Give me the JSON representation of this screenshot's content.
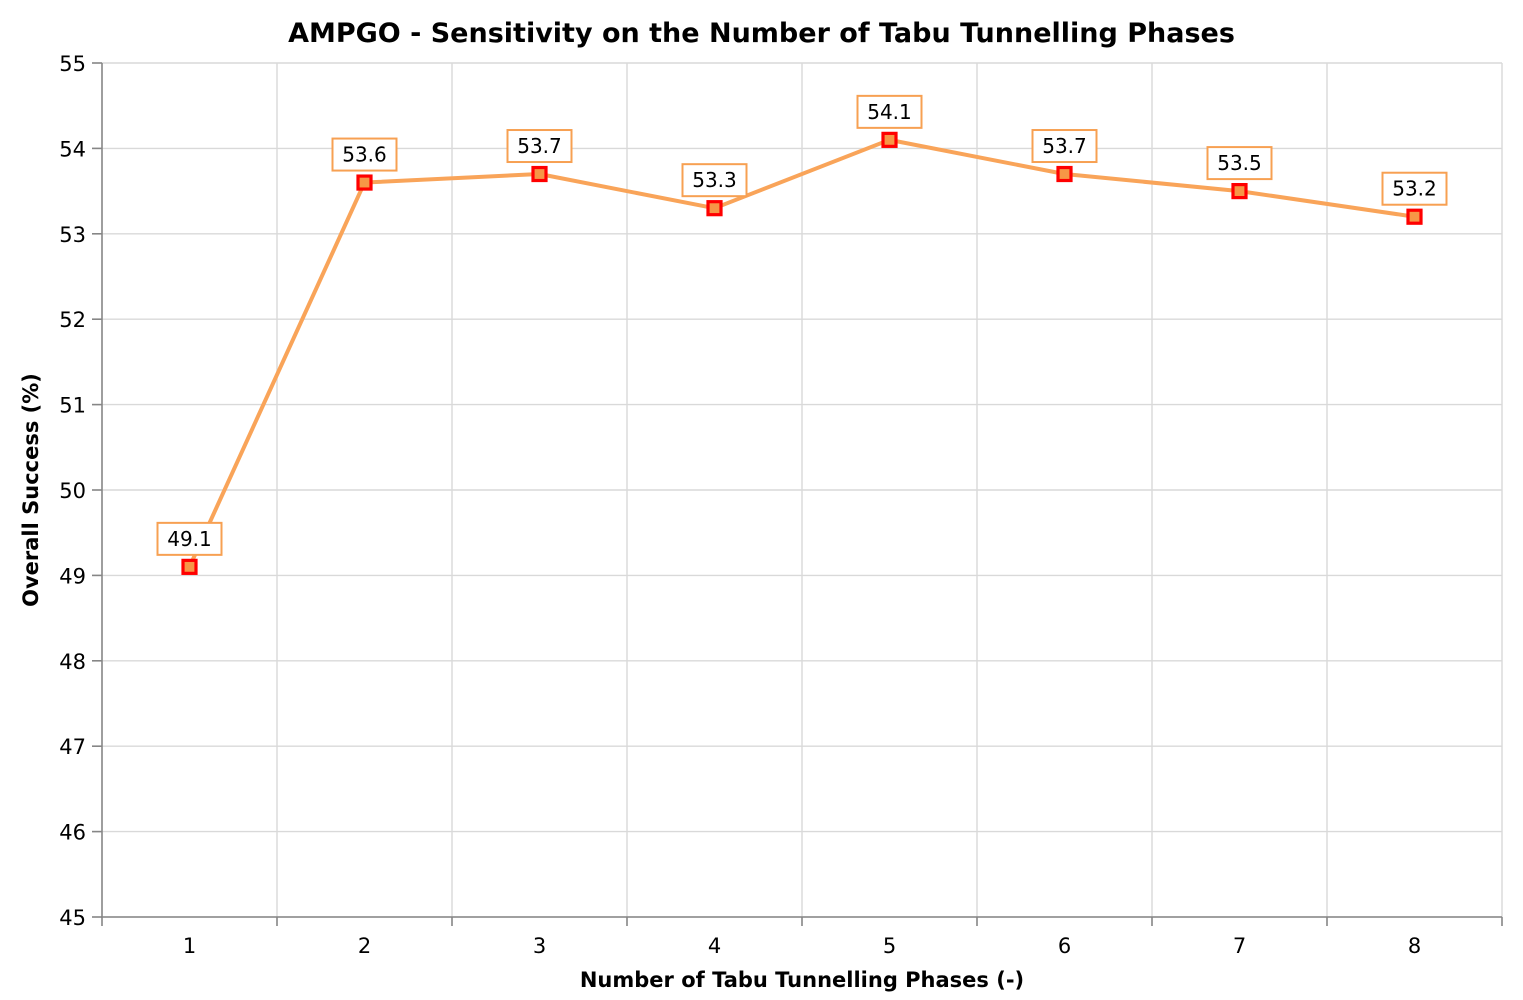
{
  "chart_data": {
    "type": "line",
    "title": "AMPGO - Sensitivity on the Number of Tabu Tunnelling Phases",
    "xlabel": "Number of Tabu Tunnelling Phases (-)",
    "ylabel": "Overall Success (%)",
    "categories": [
      "1",
      "2",
      "3",
      "4",
      "5",
      "6",
      "7",
      "8"
    ],
    "series": [
      {
        "name": "Overall Success",
        "values": [
          49.1,
          53.6,
          53.7,
          53.3,
          54.1,
          53.7,
          53.5,
          53.2
        ],
        "data_labels": [
          "49.1",
          "53.6",
          "53.7",
          "53.3",
          "54.1",
          "53.7",
          "53.5",
          "53.2"
        ]
      }
    ],
    "ylim": [
      45,
      55
    ],
    "yticks": [
      45,
      46,
      47,
      48,
      49,
      50,
      51,
      52,
      53,
      54,
      55
    ],
    "grid": "both",
    "legend": "none",
    "marker": "square",
    "colors": {
      "line": "#F9A459",
      "marker_fill": "#F79646",
      "marker_border": "#FF0000",
      "label_box_border": "#F7A052",
      "label_box_fill": "#FFFFFF",
      "gridline": "#D9D9D9",
      "axis_line": "#868686",
      "text": "#000000",
      "background": "#FFFFFF"
    }
  }
}
